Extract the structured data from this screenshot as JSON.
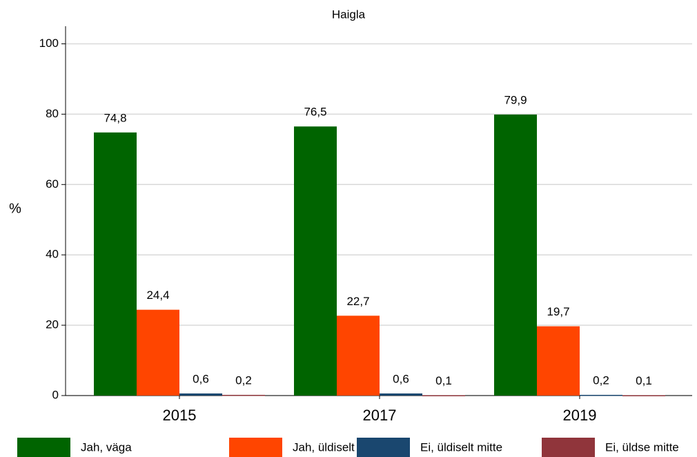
{
  "chart_data": {
    "type": "bar",
    "subtitle": "Haigla",
    "y_label": "%",
    "categories": [
      "2015",
      "2017",
      "2019"
    ],
    "series": [
      {
        "name": "Jah, väga",
        "color": "#006400",
        "values": [
          74.8,
          76.5,
          79.9
        ],
        "value_labels": [
          "74,8",
          "76,5",
          "79,9"
        ]
      },
      {
        "name": "Jah, üldiselt küll",
        "color": "#ff4500",
        "values": [
          24.4,
          22.7,
          19.7
        ],
        "value_labels": [
          "24,4",
          "22,7",
          "19,7"
        ]
      },
      {
        "name": "Ei, üldiselt mitte",
        "color": "#1a476f",
        "values": [
          0.6,
          0.6,
          0.2
        ],
        "value_labels": [
          "0,6",
          "0,6",
          "0,2"
        ]
      },
      {
        "name": "Ei, üldse mitte",
        "color": "#90353b",
        "values": [
          0.2,
          0.1,
          0.1
        ],
        "value_labels": [
          "0,2",
          "0,1",
          "0,1"
        ]
      }
    ],
    "ylim": [
      0,
      105
    ],
    "yticks": [
      0,
      20,
      40,
      60,
      80,
      100
    ],
    "grid": true,
    "legend": "bottom"
  }
}
